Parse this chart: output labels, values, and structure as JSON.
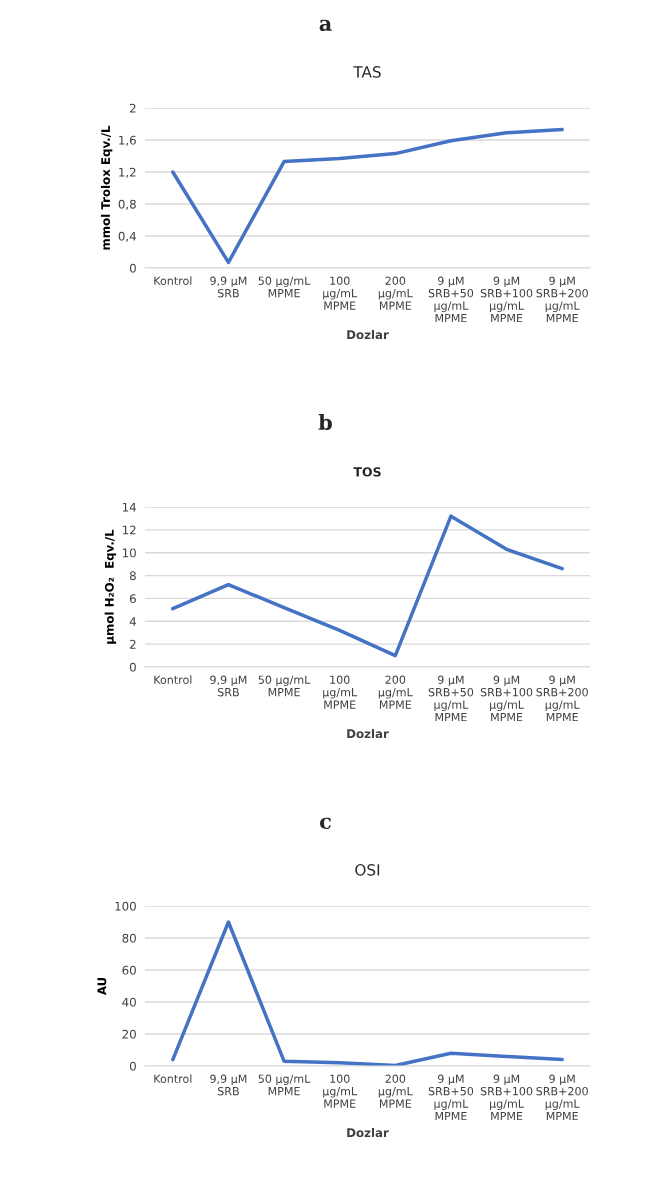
{
  "chart_data": [
    {
      "type": "line",
      "title": "TAS",
      "xlabel": "Dozlar",
      "ylabel": "mmol Trolox Eqv./L",
      "annotations": [
        "a"
      ],
      "categories": [
        "Kontrol",
        "9,9 µM\nSRB",
        "50 µg/mL\nMPME",
        "100\nµg/mL\nMPME",
        "200\nµg/mL\nMPME",
        "9 µM\nSRB+50\nµg/mL\nMPME",
        "9 µM\nSRB+100\nµg/mL\nMPME",
        "9 µM\nSRB+200\nµg/mL\nMPME"
      ],
      "series": [
        {
          "color": "#4472c4",
          "values": [
            1.2,
            0.07,
            1.33,
            1.37,
            1.43,
            1.59,
            1.69,
            1.73
          ]
        }
      ],
      "ylim": [
        0,
        2
      ],
      "yticks": [
        0,
        {
          "value": 0.4,
          "label": "0,4"
        },
        {
          "value": 0.8,
          "label": "0,8"
        },
        {
          "value": 1.2,
          "label": "1,2"
        },
        {
          "value": 1.6,
          "label": "1,6"
        },
        2
      ],
      "grid": "y"
    },
    {
      "type": "line",
      "title": "TOS",
      "xlabel": "Dozlar",
      "ylabel": "µmol H₂O₂  Eqv./L",
      "annotations": [
        "b"
      ],
      "categories": [
        "Kontrol",
        "9,9 µM\nSRB",
        "50 µg/mL\nMPME",
        "100\nµg/mL\nMPME",
        "200\nµg/mL\nMPME",
        "9 µM\nSRB+50\nµg/mL\nMPME",
        "9 µM\nSRB+100\nµg/mL\nMPME",
        "9 µM\nSRB+200\nµg/mL\nMPME"
      ],
      "series": [
        {
          "color": "#4472c4",
          "values": [
            5.1,
            7.2,
            5.2,
            3.2,
            1.0,
            13.2,
            10.3,
            8.6
          ]
        }
      ],
      "ylim": [
        0,
        14
      ],
      "yticks": [
        0,
        2,
        4,
        6,
        8,
        10,
        12,
        14
      ],
      "grid": "y"
    },
    {
      "type": "line",
      "title": "OSI",
      "xlabel": "Dozlar",
      "ylabel": "AU",
      "annotations": [
        "c"
      ],
      "categories": [
        "Kontrol",
        "9,9 µM\nSRB",
        "50 µg/mL\nMPME",
        "100\nµg/mL\nMPME",
        "200\nµg/mL\nMPME",
        "9 µM\nSRB+50\nµg/mL\nMPME",
        "9 µM\nSRB+100\nµg/mL\nMPME",
        "9 µM\nSRB+200\nµg/mL\nMPME"
      ],
      "series": [
        {
          "color": "#4472c4",
          "values": [
            4,
            90,
            3,
            2,
            0.3,
            8,
            6,
            4
          ]
        }
      ],
      "ylim": [
        0,
        100
      ],
      "yticks": [
        0,
        20,
        40,
        60,
        80,
        100
      ],
      "grid": "y"
    }
  ]
}
